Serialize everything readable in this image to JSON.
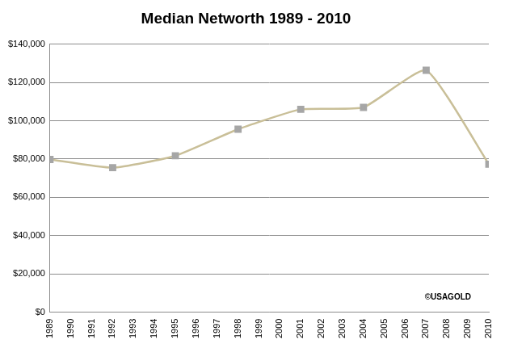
{
  "chart_data": {
    "type": "line",
    "title": "Median Networth 1989 - 2010",
    "annotations": [
      "©USAGOLD"
    ],
    "x": [
      1989,
      1992,
      1995,
      1998,
      2001,
      2004,
      2007,
      2010
    ],
    "series": [
      {
        "name": "Median Networth",
        "color": "#c9bf98",
        "marker": "square",
        "line_style": "solid",
        "values": [
          79800,
          75500,
          81700,
          95600,
          106000,
          107000,
          126400,
          77300
        ]
      }
    ],
    "xlim": [
      1989,
      2010
    ],
    "xticks": [
      1989,
      1990,
      1991,
      1992,
      1993,
      1994,
      1995,
      1996,
      1997,
      1998,
      1999,
      2000,
      2001,
      2002,
      2003,
      2004,
      2005,
      2006,
      2007,
      2008,
      2009,
      2010
    ],
    "ylim": [
      0,
      140000
    ],
    "yticks": [
      {
        "value": 0,
        "label": "$0"
      },
      {
        "value": 20000,
        "label": "$20,000"
      },
      {
        "value": 40000,
        "label": "$40,000"
      },
      {
        "value": 60000,
        "label": "$60,000"
      },
      {
        "value": 80000,
        "label": "$80,000"
      },
      {
        "value": 100000,
        "label": "$100,000"
      },
      {
        "value": 120000,
        "label": "$120,000"
      },
      {
        "value": 140000,
        "label": "$140,000"
      }
    ],
    "grid": true
  }
}
